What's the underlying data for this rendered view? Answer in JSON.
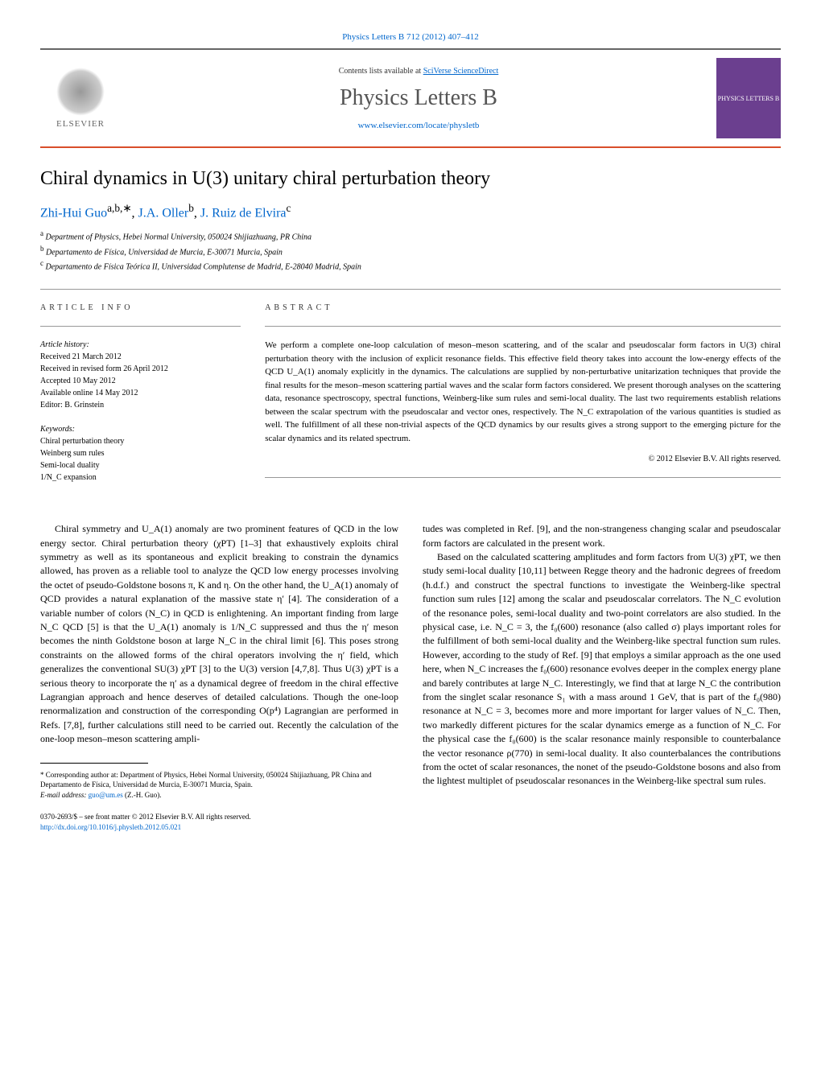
{
  "journal_ref": "Physics Letters B 712 (2012) 407–412",
  "header": {
    "contents_text": "Contents lists available at ",
    "contents_link": "SciVerse ScienceDirect",
    "journal_name": "Physics Letters B",
    "journal_url": "www.elsevier.com/locate/physletb",
    "publisher": "ELSEVIER",
    "cover_text": "PHYSICS LETTERS B"
  },
  "title": "Chiral dynamics in U(3) unitary chiral perturbation theory",
  "authors": {
    "a1": "Zhi-Hui Guo",
    "a1_sup": "a,b,∗",
    "a2": "J.A. Oller",
    "a2_sup": "b",
    "a3": "J. Ruiz de Elvira",
    "a3_sup": "c"
  },
  "affiliations": {
    "a": "Department of Physics, Hebei Normal University, 050024 Shijiazhuang, PR China",
    "b": "Departamento de Física, Universidad de Murcia, E-30071 Murcia, Spain",
    "c": "Departamento de Física Teórica II, Universidad Complutense de Madrid, E-28040 Madrid, Spain"
  },
  "article_info": {
    "heading": "ARTICLE INFO",
    "history_label": "Article history:",
    "received": "Received 21 March 2012",
    "revised": "Received in revised form 26 April 2012",
    "accepted": "Accepted 10 May 2012",
    "online": "Available online 14 May 2012",
    "editor": "Editor: B. Grinstein",
    "keywords_label": "Keywords:",
    "kw1": "Chiral perturbation theory",
    "kw2": "Weinberg sum rules",
    "kw3": "Semi-local duality",
    "kw4": "1/N_C expansion"
  },
  "abstract": {
    "heading": "ABSTRACT",
    "text": "We perform a complete one-loop calculation of meson–meson scattering, and of the scalar and pseudoscalar form factors in U(3) chiral perturbation theory with the inclusion of explicit resonance fields. This effective field theory takes into account the low-energy effects of the QCD U_A(1) anomaly explicitly in the dynamics. The calculations are supplied by non-perturbative unitarization techniques that provide the final results for the meson–meson scattering partial waves and the scalar form factors considered. We present thorough analyses on the scattering data, resonance spectroscopy, spectral functions, Weinberg-like sum rules and semi-local duality. The last two requirements establish relations between the scalar spectrum with the pseudoscalar and vector ones, respectively. The N_C extrapolation of the various quantities is studied as well. The fulfillment of all these non-trivial aspects of the QCD dynamics by our results gives a strong support to the emerging picture for the scalar dynamics and its related spectrum.",
    "copyright": "© 2012 Elsevier B.V. All rights reserved."
  },
  "body": {
    "col1_p1": "Chiral symmetry and U_A(1) anomaly are two prominent features of QCD in the low energy sector. Chiral perturbation theory (χPT) [1–3] that exhaustively exploits chiral symmetry as well as its spontaneous and explicit breaking to constrain the dynamics allowed, has proven as a reliable tool to analyze the QCD low energy processes involving the octet of pseudo-Goldstone bosons π, K and η. On the other hand, the U_A(1) anomaly of QCD provides a natural explanation of the massive state η′ [4]. The consideration of a variable number of colors (N_C) in QCD is enlightening. An important finding from large N_C QCD [5] is that the U_A(1) anomaly is 1/N_C suppressed and thus the η′ meson becomes the ninth Goldstone boson at large N_C in the chiral limit [6]. This poses strong constraints on the allowed forms of the chiral operators involving the η′ field, which generalizes the conventional SU(3) χPT [3] to the U(3) version [4,7,8]. Thus U(3) χPT is a serious theory to incorporate the η′ as a dynamical degree of freedom in the chiral effective Lagrangian approach and hence deserves of detailed calculations. Though the one-loop renormalization and construction of the corresponding O(p⁴) Lagrangian are performed in Refs. [7,8], further calculations still need to be carried out. Recently the calculation of the one-loop meson–meson scattering ampli-",
    "col2_p1": "tudes was completed in Ref. [9], and the non-strangeness changing scalar and pseudoscalar form factors are calculated in the present work.",
    "col2_p2": "Based on the calculated scattering amplitudes and form factors from U(3) χPT, we then study semi-local duality [10,11] between Regge theory and the hadronic degrees of freedom (h.d.f.) and construct the spectral functions to investigate the Weinberg-like spectral function sum rules [12] among the scalar and pseudoscalar correlators. The N_C evolution of the resonance poles, semi-local duality and two-point correlators are also studied. In the physical case, i.e. N_C = 3, the f₀(600) resonance (also called σ) plays important roles for the fulfillment of both semi-local duality and the Weinberg-like spectral function sum rules. However, according to the study of Ref. [9] that employs a similar approach as the one used here, when N_C increases the f₀(600) resonance evolves deeper in the complex energy plane and barely contributes at large N_C. Interestingly, we find that at large N_C the contribution from the singlet scalar resonance S₁ with a mass around 1 GeV, that is part of the f₀(980) resonance at N_C = 3, becomes more and more important for larger values of N_C. Then, two markedly different pictures for the scalar dynamics emerge as a function of N_C. For the physical case the f₀(600) is the scalar resonance mainly responsible to counterbalance the vector resonance ρ(770) in semi-local duality. It also counterbalances the contributions from the octet of scalar resonances, the nonet of the pseudo-Goldstone bosons and also from the lightest multiplet of pseudoscalar resonances in the Weinberg-like spectral sum rules."
  },
  "footnote": {
    "corr": "* Corresponding author at: Department of Physics, Hebei Normal University, 050024 Shijiazhuang, PR China and Departamento de Física, Universidad de Murcia, E-30071 Murcia, Spain.",
    "email_label": "E-mail address: ",
    "email": "guo@um.es",
    "email_author": " (Z.-H. Guo)."
  },
  "bottom": {
    "issn": "0370-2693/$ – see front matter © 2012 Elsevier B.V. All rights reserved.",
    "doi": "http://dx.doi.org/10.1016/j.physletb.2012.05.021"
  }
}
